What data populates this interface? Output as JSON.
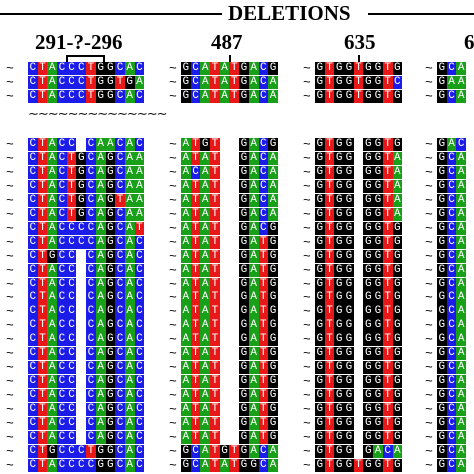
{
  "header": {
    "title": "DELETIONS"
  },
  "positions": [
    {
      "label": "291-?-296"
    },
    {
      "label": "487"
    },
    {
      "label": "635"
    },
    {
      "label": "6"
    }
  ],
  "colors": {
    "A": "#18a018",
    "C": "#1c1ce8",
    "G": "#000000",
    "T": "#e81818",
    "-": "#ffffff"
  },
  "tilde_char": "~",
  "blocks": [
    {
      "name": "block-291-296",
      "top_rows": [
        "CTACCCTGGCAC",
        "CTACCCTGGTGA",
        "CTACCCTGGCAC"
      ],
      "bottom_rows": [
        "CTACC-CAACAC",
        "CTACTGCAGCAA",
        "CTACTGCAGCAA",
        "CTACTGCAGCAA",
        "CTACTGCAGTAA",
        "CTACTGCAGCAA",
        "CTACCCCAGCAT",
        "CTACCCCAGCAC",
        "CTGCC-CAGCAC",
        "CTACC-CAGCAC",
        "CTACC-CAGCAC",
        "CTACC-CAGCAC",
        "CTACC-CAGCAC",
        "CTACC-CAGCAC",
        "CTACC-CAGCAC",
        "CTACC-CAGCAC",
        "CTACC-CAGCAC",
        "CTACC-CAGCAC",
        "CTACC-CAGCAC",
        "CTACC-CAGCAC",
        "CTACC-CAGCAC",
        "CTACC-CAGCAC",
        "CTGCCCTGGCAC",
        "CTACCCCGGCAC"
      ]
    },
    {
      "name": "block-487",
      "top_rows": [
        "GCATATGACG",
        "GCATATGACA",
        "GCATATGACA"
      ],
      "bottom_rows": [
        "ATGT--GACG",
        "ATAT--GACA",
        "ACAT--GACA",
        "ATAT--GACA",
        "ATAT--GACA",
        "ATAT--GACA",
        "ATAT--GACG",
        "ATAT--GATG",
        "ATAT--GATG",
        "ATAT--GATG",
        "ATAT--GATG",
        "ATAT--GATG",
        "ATAT--GATG",
        "ATAT--GATG",
        "ATAT--GATG",
        "ATAT--GATG",
        "ATAT--GATG",
        "ATAT--GATG",
        "ATAT--GATG",
        "ATAT--GATG",
        "ATAT--GATG",
        "ATAT--GATG",
        "GCATGTGACA",
        "GCATATGGCA"
      ]
    },
    {
      "name": "block-635",
      "top_rows": [
        "GTGGTGGTG",
        "GTGGTGGTC",
        "GTGGTGGTG"
      ],
      "bottom_rows": [
        "GTGG-GGTG",
        "GTGG-GGTA",
        "GTGG-GGTA",
        "GTGG-GGTA",
        "GTGG-GGTA",
        "GTGG-GGTA",
        "GTGG-GGTG",
        "GTGG-GGTG",
        "GTGG-GGTG",
        "GTGG-GGTG",
        "GTGG-GGTG",
        "GTGG-GGTG",
        "GTGG-GGTG",
        "GTGG-GGTG",
        "GTGG-GGTG",
        "GTGG-GGTG",
        "GTGG-GGTG",
        "GTGG-GGTG",
        "GTGG-GGTG",
        "GTGG-GGTG",
        "GTGG-GGTG",
        "GTGG-GGTG",
        "GTGG-GACA",
        "GTGGTGGTG"
      ]
    },
    {
      "name": "block-6xx",
      "top_rows": [
        "GCA",
        "GAA",
        "GCA"
      ],
      "bottom_rows": [
        "GAC",
        "GCA",
        "GCA",
        "GCA",
        "GCA",
        "GCA",
        "GCA",
        "GCA",
        "GCA",
        "GCA",
        "GCA",
        "GCA",
        "GCA",
        "GCA",
        "GCA",
        "GCA",
        "GCA",
        "GCA",
        "GCA",
        "GCA",
        "GCA",
        "GCA",
        "GCA",
        "GCA"
      ]
    }
  ]
}
